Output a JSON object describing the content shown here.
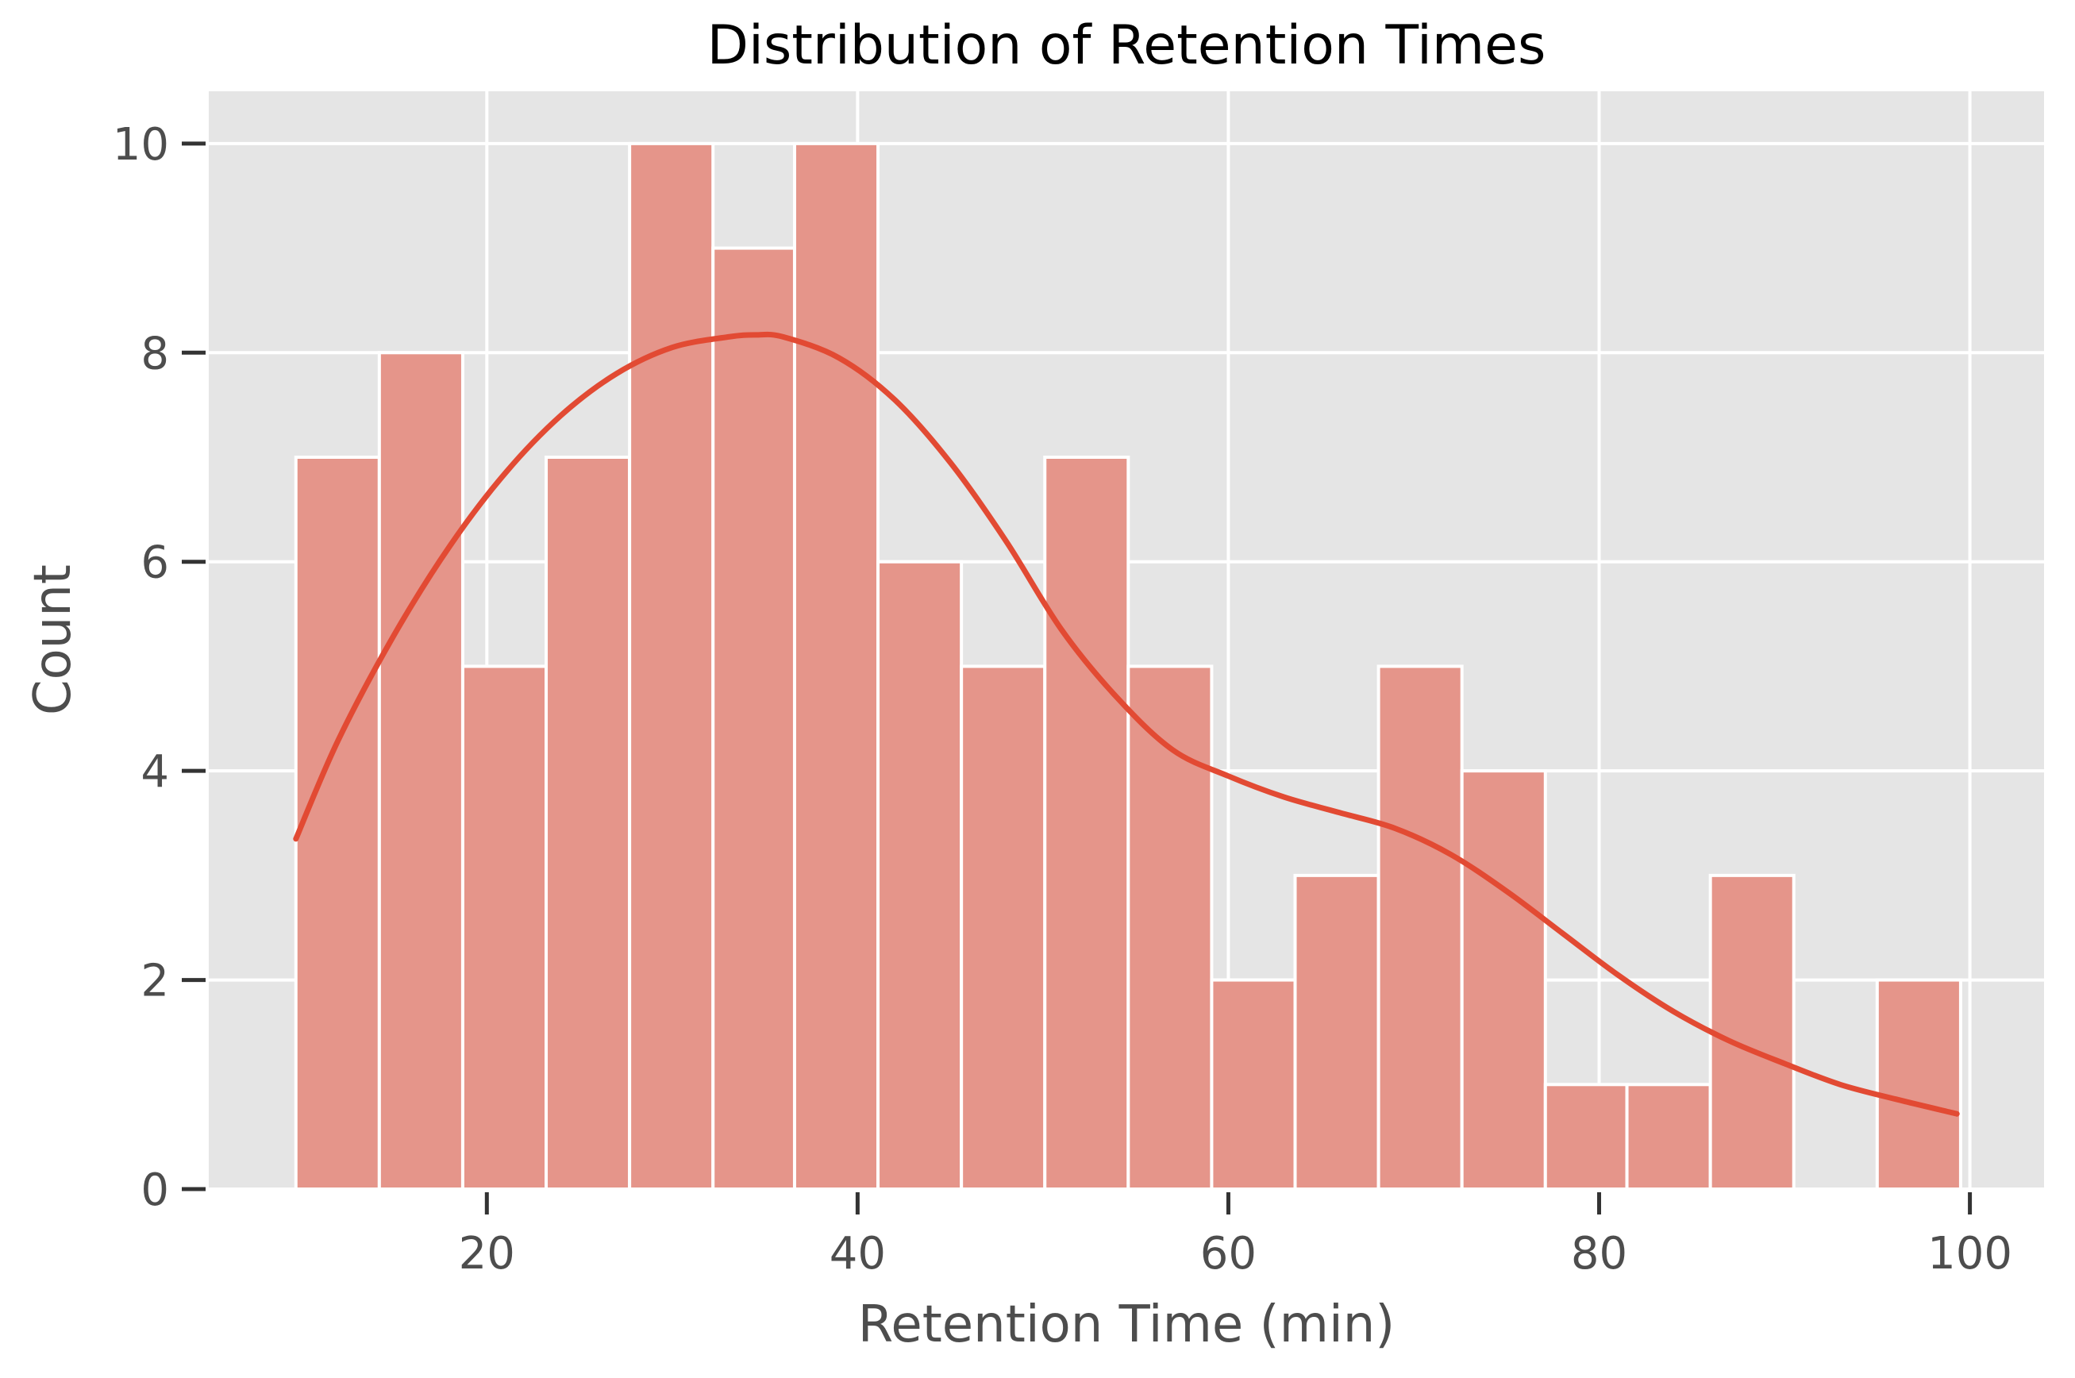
{
  "chart_data": {
    "type": "bar",
    "title": "Distribution of Retention Times",
    "xlabel": "Retention Time (min)",
    "ylabel": "Count",
    "xlim": [
      5,
      104
    ],
    "ylim": [
      0,
      10.5
    ],
    "xticks": [
      20,
      40,
      60,
      80,
      100
    ],
    "yticks": [
      0,
      2,
      4,
      6,
      8,
      10
    ],
    "grid": true,
    "colors": {
      "bar": "#E5958A",
      "bar_edge": "#ffffff",
      "kde": "#E24A33",
      "panel": "#E5E5E5",
      "grid": "#ffffff"
    },
    "bins": [
      {
        "x0": 9.7,
        "x1": 14.2,
        "count": 7
      },
      {
        "x0": 14.2,
        "x1": 18.7,
        "count": 8
      },
      {
        "x0": 18.7,
        "x1": 23.2,
        "count": 5
      },
      {
        "x0": 23.2,
        "x1": 27.7,
        "count": 7
      },
      {
        "x0": 27.7,
        "x1": 32.2,
        "count": 10
      },
      {
        "x0": 32.2,
        "x1": 36.6,
        "count": 9
      },
      {
        "x0": 36.6,
        "x1": 41.1,
        "count": 10
      },
      {
        "x0": 41.1,
        "x1": 45.6,
        "count": 6
      },
      {
        "x0": 45.6,
        "x1": 50.1,
        "count": 5
      },
      {
        "x0": 50.1,
        "x1": 54.6,
        "count": 7
      },
      {
        "x0": 54.6,
        "x1": 59.1,
        "count": 5
      },
      {
        "x0": 59.1,
        "x1": 63.6,
        "count": 2
      },
      {
        "x0": 63.6,
        "x1": 68.1,
        "count": 3
      },
      {
        "x0": 68.1,
        "x1": 72.6,
        "count": 5
      },
      {
        "x0": 72.6,
        "x1": 77.1,
        "count": 4
      },
      {
        "x0": 77.1,
        "x1": 81.5,
        "count": 1
      },
      {
        "x0": 81.5,
        "x1": 86.0,
        "count": 1
      },
      {
        "x0": 86.0,
        "x1": 90.5,
        "count": 3
      },
      {
        "x0": 90.5,
        "x1": 95.0,
        "count": 0
      },
      {
        "x0": 95.0,
        "x1": 99.5,
        "count": 2
      }
    ],
    "kde": {
      "name": "KDE",
      "x": [
        9.7,
        12,
        15,
        18,
        21,
        24,
        27,
        30,
        33,
        34.5,
        36,
        39,
        42,
        45,
        48,
        51,
        54,
        57,
        60,
        63,
        66,
        69,
        72,
        75,
        78,
        81,
        84,
        87,
        90,
        93,
        96,
        99.3
      ],
      "y": [
        3.35,
        4.3,
        5.3,
        6.15,
        6.85,
        7.4,
        7.8,
        8.05,
        8.15,
        8.17,
        8.15,
        7.95,
        7.55,
        6.95,
        6.2,
        5.35,
        4.7,
        4.2,
        3.95,
        3.75,
        3.6,
        3.45,
        3.2,
        2.85,
        2.45,
        2.05,
        1.7,
        1.42,
        1.2,
        1.0,
        0.86,
        0.72
      ]
    }
  }
}
